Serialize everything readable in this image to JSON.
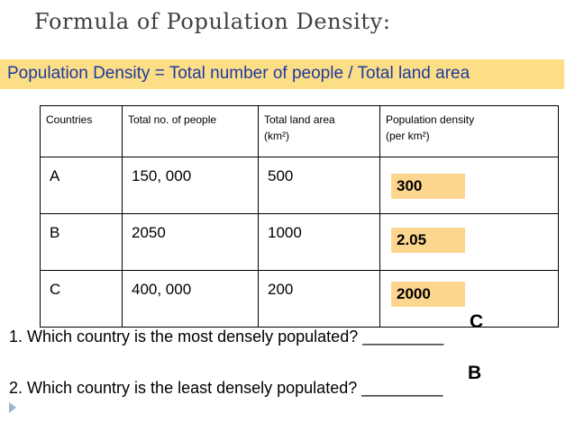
{
  "title": "Formula of Population Density:",
  "formula": "Population Density = Total number of people / Total land area",
  "table": {
    "headers": {
      "country": "Countries",
      "people": "Total no. of people",
      "area": "Total land area",
      "area_unit": "(km²)",
      "density": "Population density",
      "density_unit": "(per km²)"
    },
    "rows": [
      {
        "country": "A",
        "people": "150, 000",
        "area": "500",
        "density": "300"
      },
      {
        "country": "B",
        "people": "2050",
        "area": "1000",
        "density": "2.05"
      },
      {
        "country": "C",
        "people": "400, 000",
        "area": "200",
        "density": "2000"
      }
    ]
  },
  "questions": [
    {
      "text": "1. Which country is the most densely populated? _________",
      "answer": "C"
    },
    {
      "text": "2. Which country is the least densely populated? _________",
      "answer": "B"
    }
  ],
  "colors": {
    "formula_bar": "#fcde87",
    "formula_text": "#1f3aa0",
    "answer_box": "#fcd68e"
  }
}
